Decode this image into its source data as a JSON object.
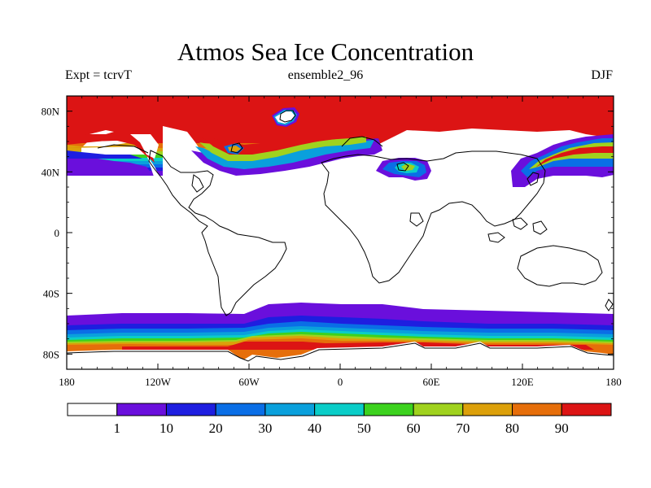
{
  "title": "Atmos Sea Ice Concentration",
  "subtitle_left": "Expt = tcrvT",
  "subtitle_center": "ensemble2_96",
  "subtitle_right": "DJF",
  "map": {
    "projection": "cylindrical-equidistant",
    "lon_range": [
      -180,
      180
    ],
    "lat_range": [
      -90,
      90
    ],
    "lon_ticks": [
      {
        "value": -180,
        "label": "180"
      },
      {
        "value": -120,
        "label": "120W"
      },
      {
        "value": -60,
        "label": "60W"
      },
      {
        "value": 0,
        "label": "0"
      },
      {
        "value": 60,
        "label": "60E"
      },
      {
        "value": 120,
        "label": "120E"
      },
      {
        "value": 180,
        "label": "180"
      }
    ],
    "lat_ticks": [
      {
        "value": 80,
        "label": "80N"
      },
      {
        "value": 40,
        "label": "40N"
      },
      {
        "value": 0,
        "label": "0"
      },
      {
        "value": -40,
        "label": "40S"
      },
      {
        "value": -80,
        "label": "80S"
      }
    ]
  },
  "colorbar": {
    "colors": [
      "#ffffff",
      "#6a0fdc",
      "#1e1ee0",
      "#0a6ee6",
      "#0aa0dc",
      "#0acdc8",
      "#3cd21e",
      "#a0d21e",
      "#dca00a",
      "#e66e0a",
      "#dc1414"
    ],
    "labels": [
      "1",
      "10",
      "20",
      "30",
      "40",
      "50",
      "60",
      "70",
      "80",
      "90"
    ]
  }
}
